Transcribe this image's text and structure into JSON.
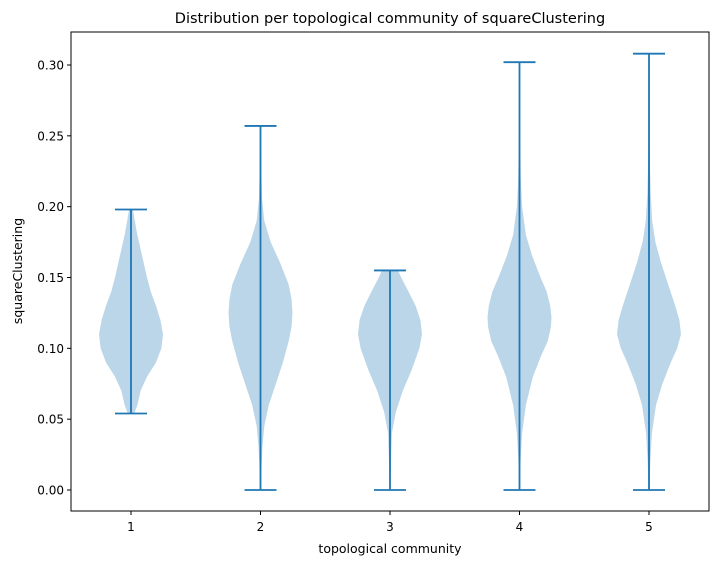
{
  "chart_data": {
    "type": "violin",
    "title": "Distribution per topological community of squareClustering",
    "xlabel": "topological community",
    "ylabel": "squareClustering",
    "categories": [
      "1",
      "2",
      "3",
      "4",
      "5"
    ],
    "ylim": [
      -0.015,
      0.322
    ],
    "yticks": [
      0.0,
      0.05,
      0.1,
      0.15,
      0.2,
      0.25,
      0.3
    ],
    "ytick_labels": [
      "0.00",
      "0.05",
      "0.10",
      "0.15",
      "0.20",
      "0.25",
      "0.30"
    ],
    "grid": false,
    "colors": {
      "body": "#b8d4e8",
      "lines": "#1f77b4"
    },
    "violins": [
      {
        "category": "1",
        "min": 0.054,
        "max": 0.198,
        "profile": [
          [
            0.054,
            0.1
          ],
          [
            0.06,
            0.2
          ],
          [
            0.07,
            0.3
          ],
          [
            0.08,
            0.5
          ],
          [
            0.09,
            0.78
          ],
          [
            0.1,
            0.95
          ],
          [
            0.11,
            1.0
          ],
          [
            0.12,
            0.92
          ],
          [
            0.13,
            0.78
          ],
          [
            0.14,
            0.62
          ],
          [
            0.15,
            0.5
          ],
          [
            0.16,
            0.4
          ],
          [
            0.17,
            0.3
          ],
          [
            0.18,
            0.2
          ],
          [
            0.19,
            0.12
          ],
          [
            0.198,
            0.06
          ]
        ]
      },
      {
        "category": "2",
        "min": 0.0,
        "max": 0.257,
        "profile": [
          [
            0.0,
            0.02
          ],
          [
            0.015,
            0.03
          ],
          [
            0.03,
            0.06
          ],
          [
            0.045,
            0.12
          ],
          [
            0.06,
            0.26
          ],
          [
            0.075,
            0.48
          ],
          [
            0.09,
            0.7
          ],
          [
            0.105,
            0.88
          ],
          [
            0.115,
            0.97
          ],
          [
            0.125,
            1.0
          ],
          [
            0.135,
            0.97
          ],
          [
            0.145,
            0.88
          ],
          [
            0.16,
            0.62
          ],
          [
            0.175,
            0.32
          ],
          [
            0.19,
            0.12
          ],
          [
            0.205,
            0.05
          ],
          [
            0.22,
            0.03
          ],
          [
            0.24,
            0.02
          ],
          [
            0.257,
            0.015
          ]
        ]
      },
      {
        "category": "3",
        "min": 0.0,
        "max": 0.155,
        "profile": [
          [
            0.0,
            0.01
          ],
          [
            0.02,
            0.03
          ],
          [
            0.04,
            0.06
          ],
          [
            0.055,
            0.18
          ],
          [
            0.07,
            0.4
          ],
          [
            0.085,
            0.68
          ],
          [
            0.1,
            0.92
          ],
          [
            0.11,
            1.0
          ],
          [
            0.12,
            0.95
          ],
          [
            0.13,
            0.8
          ],
          [
            0.14,
            0.58
          ],
          [
            0.15,
            0.35
          ],
          [
            0.155,
            0.25
          ]
        ]
      },
      {
        "category": "4",
        "min": 0.0,
        "max": 0.302,
        "profile": [
          [
            0.0,
            0.015
          ],
          [
            0.02,
            0.03
          ],
          [
            0.04,
            0.08
          ],
          [
            0.06,
            0.2
          ],
          [
            0.08,
            0.42
          ],
          [
            0.095,
            0.68
          ],
          [
            0.105,
            0.88
          ],
          [
            0.115,
            0.98
          ],
          [
            0.122,
            1.0
          ],
          [
            0.13,
            0.96
          ],
          [
            0.14,
            0.85
          ],
          [
            0.15,
            0.66
          ],
          [
            0.165,
            0.4
          ],
          [
            0.18,
            0.2
          ],
          [
            0.2,
            0.08
          ],
          [
            0.22,
            0.04
          ],
          [
            0.25,
            0.02
          ],
          [
            0.28,
            0.01
          ],
          [
            0.302,
            0.008
          ]
        ]
      },
      {
        "category": "5",
        "min": 0.0,
        "max": 0.308,
        "profile": [
          [
            0.0,
            0.02
          ],
          [
            0.02,
            0.04
          ],
          [
            0.04,
            0.09
          ],
          [
            0.06,
            0.22
          ],
          [
            0.075,
            0.42
          ],
          [
            0.09,
            0.68
          ],
          [
            0.1,
            0.88
          ],
          [
            0.11,
            1.0
          ],
          [
            0.12,
            0.95
          ],
          [
            0.13,
            0.82
          ],
          [
            0.145,
            0.6
          ],
          [
            0.16,
            0.38
          ],
          [
            0.175,
            0.2
          ],
          [
            0.19,
            0.1
          ],
          [
            0.21,
            0.05
          ],
          [
            0.24,
            0.02
          ],
          [
            0.27,
            0.01
          ],
          [
            0.308,
            0.006
          ]
        ]
      }
    ]
  }
}
